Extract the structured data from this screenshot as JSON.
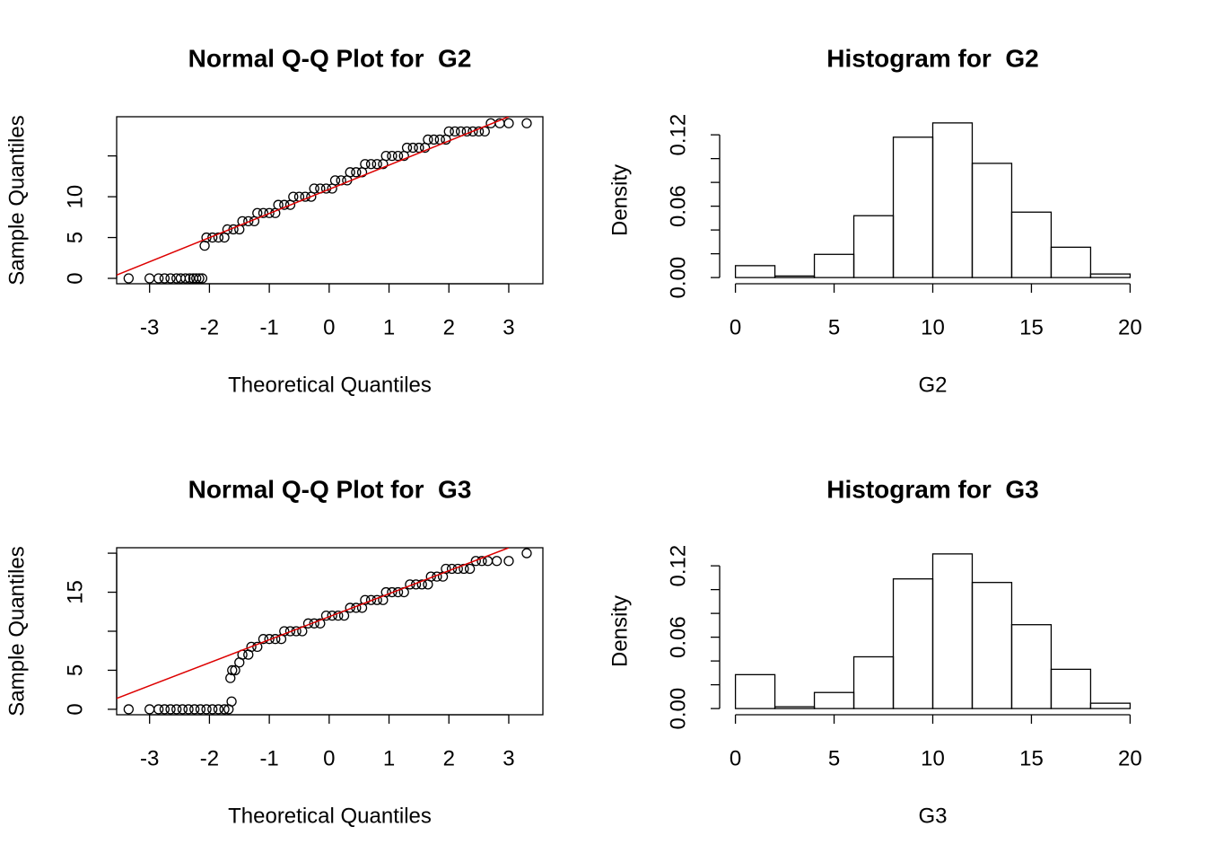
{
  "chart_data": [
    {
      "type": "scatter",
      "title": "Normal Q-Q Plot for  G2",
      "xlabel": "Theoretical Quantiles",
      "ylabel": "Sample Quantiles",
      "box": true,
      "xlim": [
        -3.55,
        3.57
      ],
      "ylim": [
        -0.66,
        19.8
      ],
      "xticks": [
        -3,
        -2,
        -1,
        0,
        1,
        2,
        3
      ],
      "yticks": [
        0,
        5,
        10,
        {
          "value": 15
        }
      ],
      "points": {
        "color": "#000000",
        "x": [
          -3.35,
          -3.0,
          -2.85,
          -2.75,
          -2.65,
          -2.55,
          -2.48,
          -2.4,
          -2.33,
          -2.27,
          -2.22,
          -2.17,
          -2.12,
          -2.08,
          -2.05,
          -1.95,
          -1.85,
          -1.75,
          -1.7,
          -1.6,
          -1.5,
          -1.45,
          -1.35,
          -1.25,
          -1.2,
          -1.1,
          -1.0,
          -0.9,
          -0.85,
          -0.75,
          -0.65,
          -0.6,
          -0.5,
          -0.4,
          -0.3,
          -0.25,
          -0.15,
          -0.05,
          0.05,
          0.1,
          0.2,
          0.3,
          0.35,
          0.45,
          0.55,
          0.6,
          0.7,
          0.8,
          0.9,
          0.95,
          1.05,
          1.15,
          1.25,
          1.3,
          1.4,
          1.5,
          1.6,
          1.65,
          1.75,
          1.85,
          1.95,
          2.0,
          2.1,
          2.2,
          2.3,
          2.4,
          2.5,
          2.6,
          2.7,
          2.85,
          3.0,
          3.3
        ],
        "values": [
          0,
          0,
          0,
          0,
          0,
          0,
          0,
          0,
          0,
          0,
          0,
          0,
          0,
          4,
          5,
          5,
          5,
          5,
          6,
          6,
          6,
          7,
          7,
          7,
          8,
          8,
          8,
          8,
          9,
          9,
          9,
          10,
          10,
          10,
          10,
          11,
          11,
          11,
          11,
          12,
          12,
          12,
          13,
          13,
          13,
          14,
          14,
          14,
          14,
          15,
          15,
          15,
          15,
          16,
          16,
          16,
          16,
          17,
          17,
          17,
          17,
          18,
          18,
          18,
          18,
          18,
          18,
          18,
          19,
          19,
          19,
          19
        ]
      },
      "reference_line": {
        "color": "#dd0000",
        "x": [
          -3.55,
          3.0
        ],
        "values": [
          0.4,
          19.8
        ]
      }
    },
    {
      "type": "histogram",
      "title": "Histogram for  G2",
      "xlabel": "G2",
      "ylabel": "Density",
      "xlim": [
        -0.8,
        20.8
      ],
      "ylim": [
        -0.0052,
        0.1352
      ],
      "xticks": [
        0,
        5,
        10,
        15,
        20
      ],
      "yticks": [
        {
          "value": 0,
          "label": "0.00"
        },
        {
          "value": 0.02
        },
        {
          "value": 0.04
        },
        {
          "value": 0.06,
          "label": "0.06"
        },
        {
          "value": 0.08
        },
        {
          "value": 0.1
        },
        {
          "value": 0.12,
          "label": "0.12"
        }
      ],
      "bins": [
        0,
        2,
        4,
        6,
        8,
        10,
        12,
        14,
        16,
        18,
        20
      ],
      "values": [
        0.01,
        0.0013,
        0.0195,
        0.052,
        0.118,
        0.13,
        0.096,
        0.055,
        0.0255,
        0.003
      ]
    },
    {
      "type": "scatter",
      "title": "Normal Q-Q Plot for  G3",
      "xlabel": "Theoretical Quantiles",
      "ylabel": "Sample Quantiles",
      "box": true,
      "xlim": [
        -3.55,
        3.57
      ],
      "ylim": [
        -0.7,
        20.7
      ],
      "xticks": [
        -3,
        -2,
        -1,
        0,
        1,
        2,
        3
      ],
      "yticks": [
        0,
        5,
        {
          "value": 10
        },
        15,
        {
          "value": 20
        }
      ],
      "points": {
        "color": "#000000",
        "x": [
          -3.35,
          -3.0,
          -2.85,
          -2.75,
          -2.65,
          -2.55,
          -2.45,
          -2.35,
          -2.25,
          -2.15,
          -2.05,
          -1.95,
          -1.85,
          -1.75,
          -1.68,
          -1.63,
          -1.65,
          -1.62,
          -1.57,
          -1.5,
          -1.45,
          -1.35,
          -1.3,
          -1.2,
          -1.1,
          -1.0,
          -0.9,
          -0.8,
          -0.75,
          -0.65,
          -0.55,
          -0.45,
          -0.35,
          -0.25,
          -0.15,
          -0.05,
          0.05,
          0.15,
          0.25,
          0.35,
          0.45,
          0.55,
          0.6,
          0.7,
          0.8,
          0.9,
          0.95,
          1.05,
          1.15,
          1.25,
          1.35,
          1.45,
          1.55,
          1.65,
          1.7,
          1.8,
          1.9,
          1.95,
          2.05,
          2.15,
          2.25,
          2.35,
          2.45,
          2.55,
          2.65,
          2.8,
          3.0,
          3.3
        ],
        "values": [
          0,
          0,
          0,
          0,
          0,
          0,
          0,
          0,
          0,
          0,
          0,
          0,
          0,
          0,
          0,
          1,
          4,
          5,
          5,
          6,
          7,
          7,
          8,
          8,
          9,
          9,
          9,
          9,
          10,
          10,
          10,
          10,
          11,
          11,
          11,
          12,
          12,
          12,
          12,
          13,
          13,
          13,
          14,
          14,
          14,
          14,
          15,
          15,
          15,
          15,
          16,
          16,
          16,
          16,
          17,
          17,
          17,
          18,
          18,
          18,
          18,
          18,
          19,
          19,
          19,
          19,
          19,
          20
        ]
      },
      "reference_line": {
        "color": "#dd0000",
        "x": [
          -3.55,
          3.0
        ],
        "values": [
          1.4,
          20.7
        ]
      }
    },
    {
      "type": "histogram",
      "title": "Histogram for  G3",
      "xlabel": "G3",
      "ylabel": "Density",
      "xlim": [
        -0.8,
        20.8
      ],
      "ylim": [
        -0.0052,
        0.1352
      ],
      "xticks": [
        0,
        5,
        10,
        15,
        20
      ],
      "yticks": [
        {
          "value": 0,
          "label": "0.00"
        },
        {
          "value": 0.02
        },
        {
          "value": 0.04
        },
        {
          "value": 0.06,
          "label": "0.06"
        },
        {
          "value": 0.08
        },
        {
          "value": 0.1
        },
        {
          "value": 0.12,
          "label": "0.12"
        }
      ],
      "bins": [
        0,
        2,
        4,
        6,
        8,
        10,
        12,
        14,
        16,
        18,
        20
      ],
      "values": [
        0.0285,
        0.0015,
        0.0135,
        0.0435,
        0.109,
        0.13,
        0.106,
        0.0705,
        0.033,
        0.0045
      ]
    }
  ]
}
